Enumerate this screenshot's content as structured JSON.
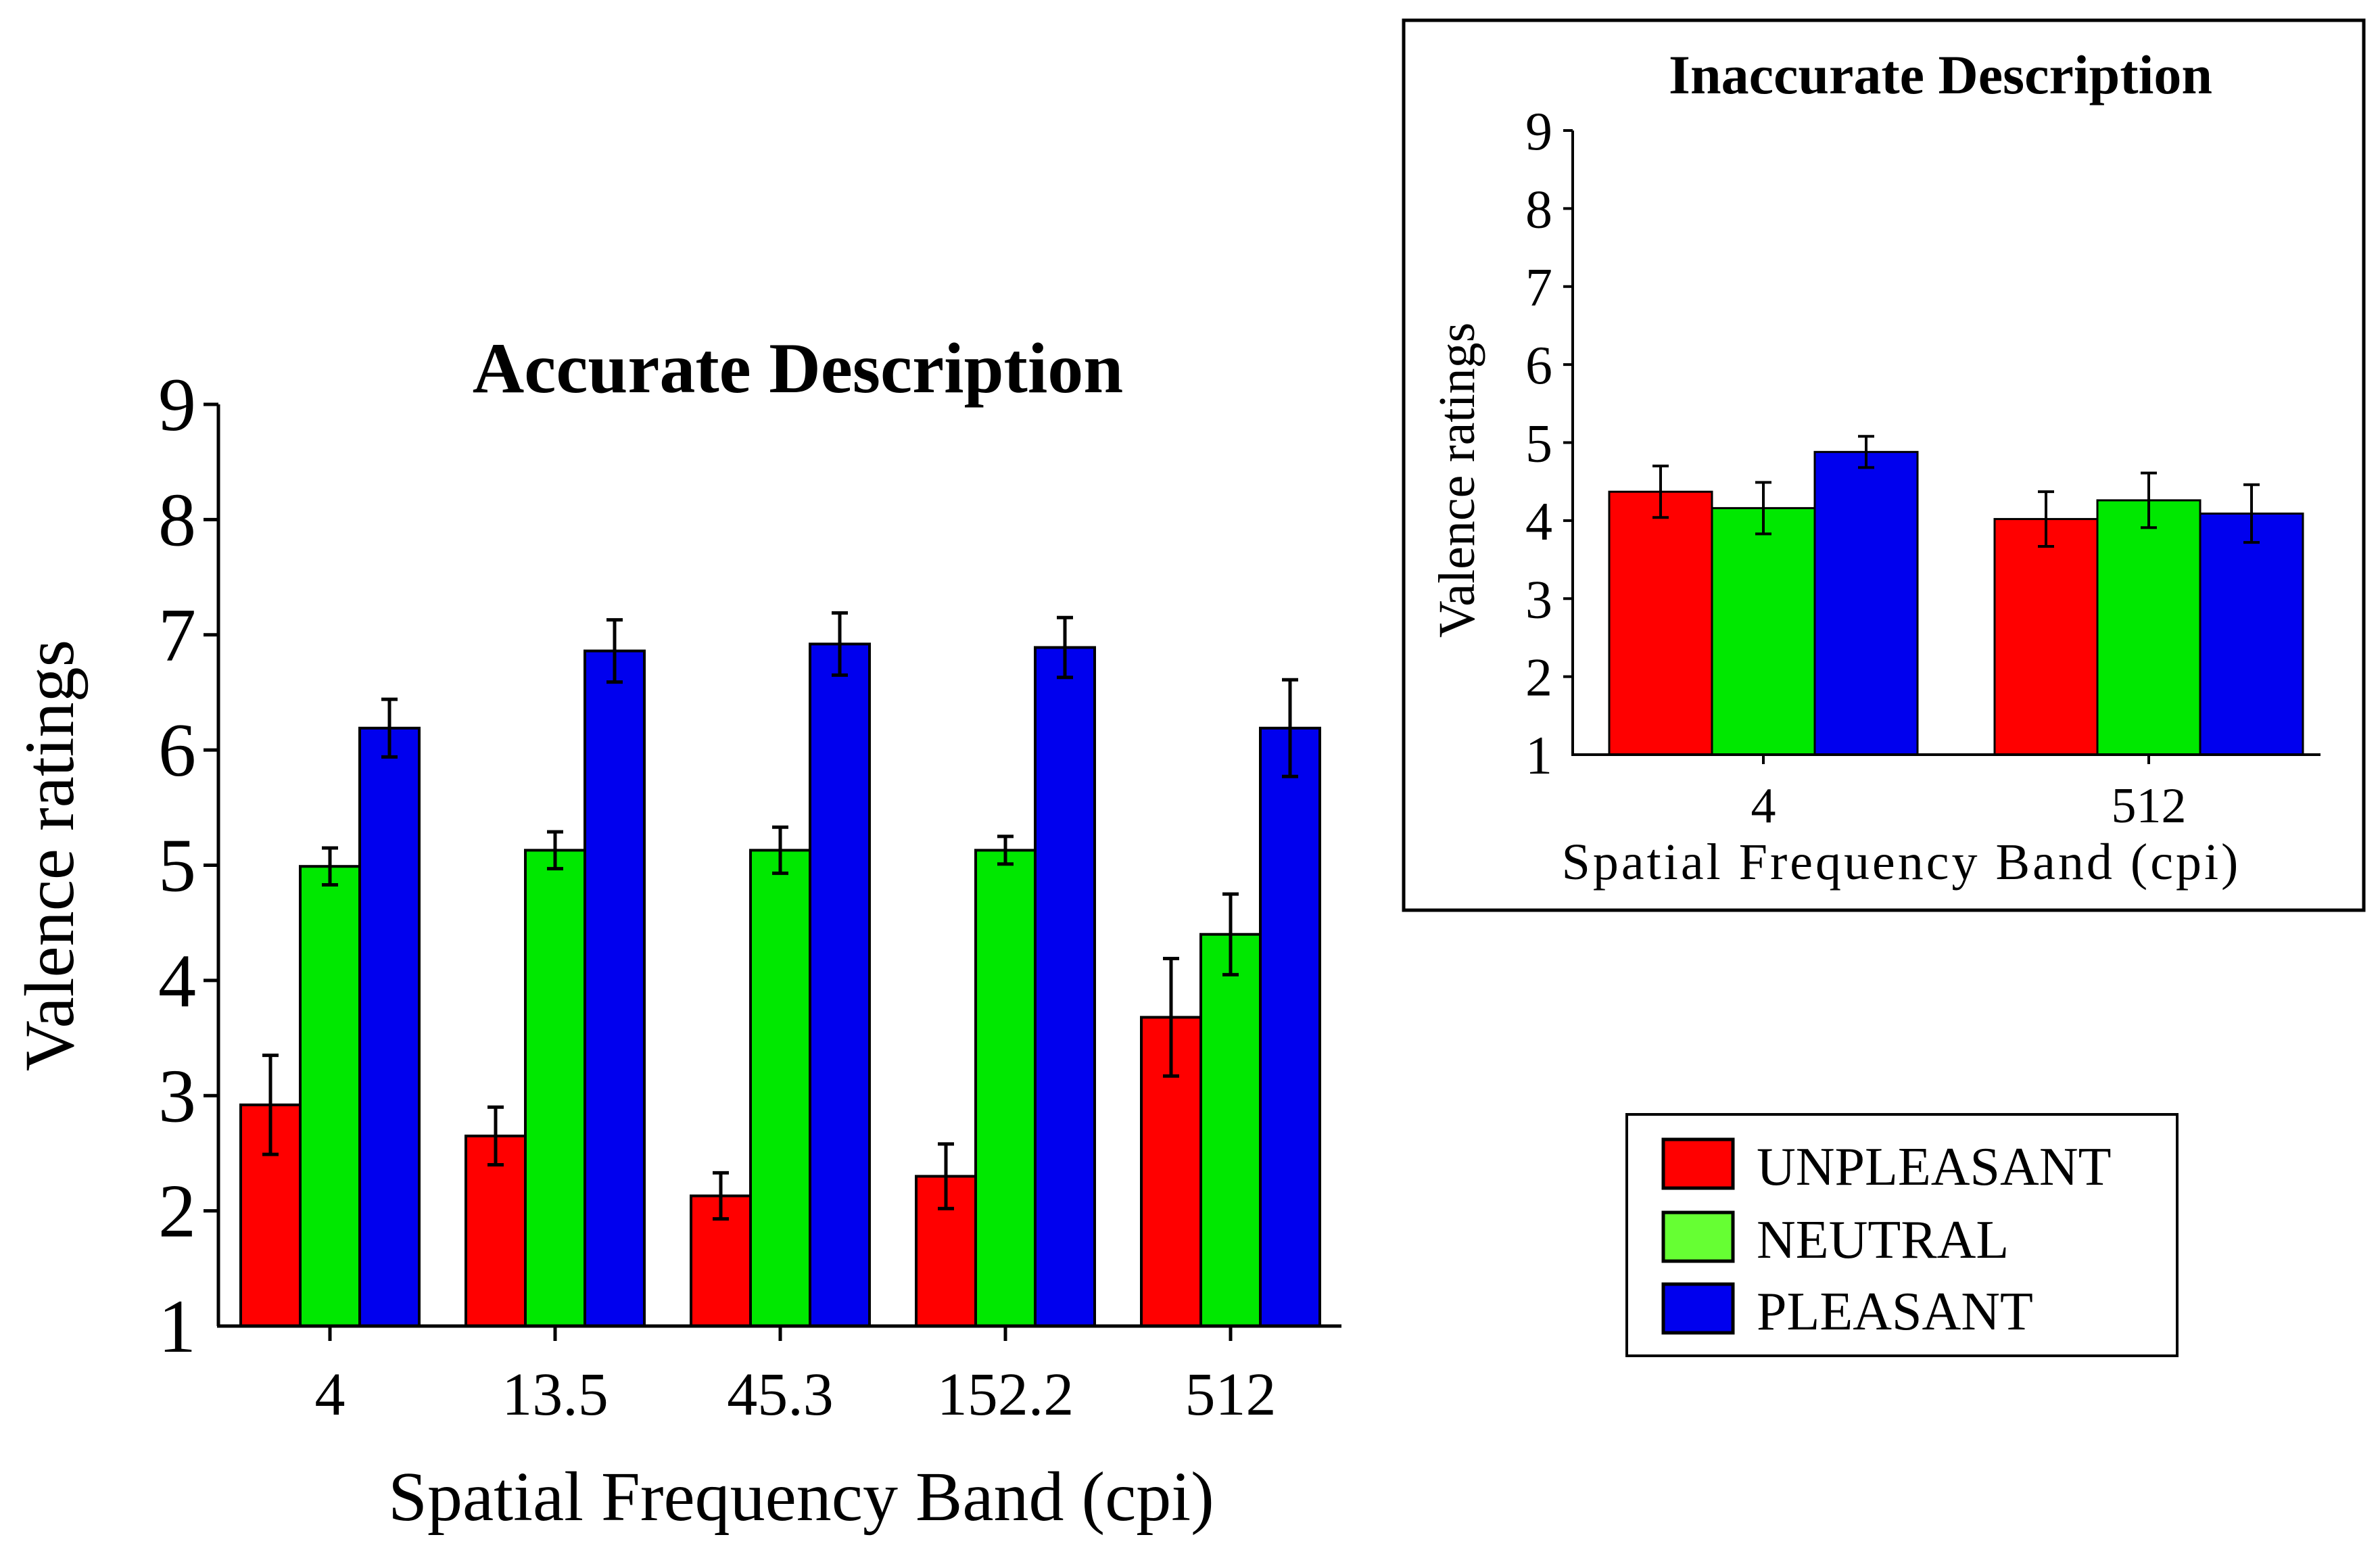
{
  "chart_data": [
    {
      "type": "bar",
      "title": "Accurate Description",
      "xlabel": "Spatial Frequency Band (cpi)",
      "ylabel": "Valence ratings",
      "ylim": [
        1,
        9
      ],
      "yticks": [
        "1",
        "2",
        "3",
        "4",
        "5",
        "6",
        "7",
        "8",
        "9"
      ],
      "categories": [
        "4",
        "13.5",
        "45.3",
        "152.2",
        "512"
      ],
      "series": [
        {
          "name": "UNPLEASANT",
          "color": "#ff0000",
          "values": [
            2.92,
            2.65,
            2.13,
            2.3,
            3.68
          ],
          "errors": [
            0.43,
            0.25,
            0.2,
            0.28,
            0.51
          ]
        },
        {
          "name": "NEUTRAL",
          "color": "#00e800",
          "values": [
            4.99,
            5.13,
            5.13,
            5.13,
            4.4
          ],
          "errors": [
            0.16,
            0.16,
            0.2,
            0.12,
            0.35
          ]
        },
        {
          "name": "PLEASANT",
          "color": "#0000ee",
          "values": [
            6.19,
            6.86,
            6.92,
            6.89,
            6.19
          ],
          "errors": [
            0.25,
            0.27,
            0.27,
            0.26,
            0.42
          ]
        }
      ]
    },
    {
      "type": "bar",
      "title": "Inaccurate Description",
      "xlabel": "Spatial Frequency Band (cpi)",
      "ylabel": "Valence ratings",
      "ylim": [
        1,
        9
      ],
      "yticks": [
        "1",
        "2",
        "3",
        "4",
        "5",
        "6",
        "7",
        "8",
        "9"
      ],
      "categories": [
        "4",
        "512"
      ],
      "series": [
        {
          "name": "UNPLEASANT",
          "color": "#ff0000",
          "values": [
            4.37,
            4.02
          ],
          "errors": [
            0.33,
            0.35
          ]
        },
        {
          "name": "NEUTRAL",
          "color": "#00e800",
          "values": [
            4.16,
            4.26
          ],
          "errors": [
            0.33,
            0.35
          ]
        },
        {
          "name": "PLEASANT",
          "color": "#0000ee",
          "values": [
            4.88,
            4.09
          ],
          "errors": [
            0.2,
            0.37
          ]
        }
      ]
    }
  ],
  "legend": {
    "items": [
      {
        "label": "UNPLEASANT",
        "color": "#ff0000"
      },
      {
        "label": "NEUTRAL",
        "color": "#66ff33"
      },
      {
        "label": "PLEASANT",
        "color": "#0000ee"
      }
    ]
  }
}
